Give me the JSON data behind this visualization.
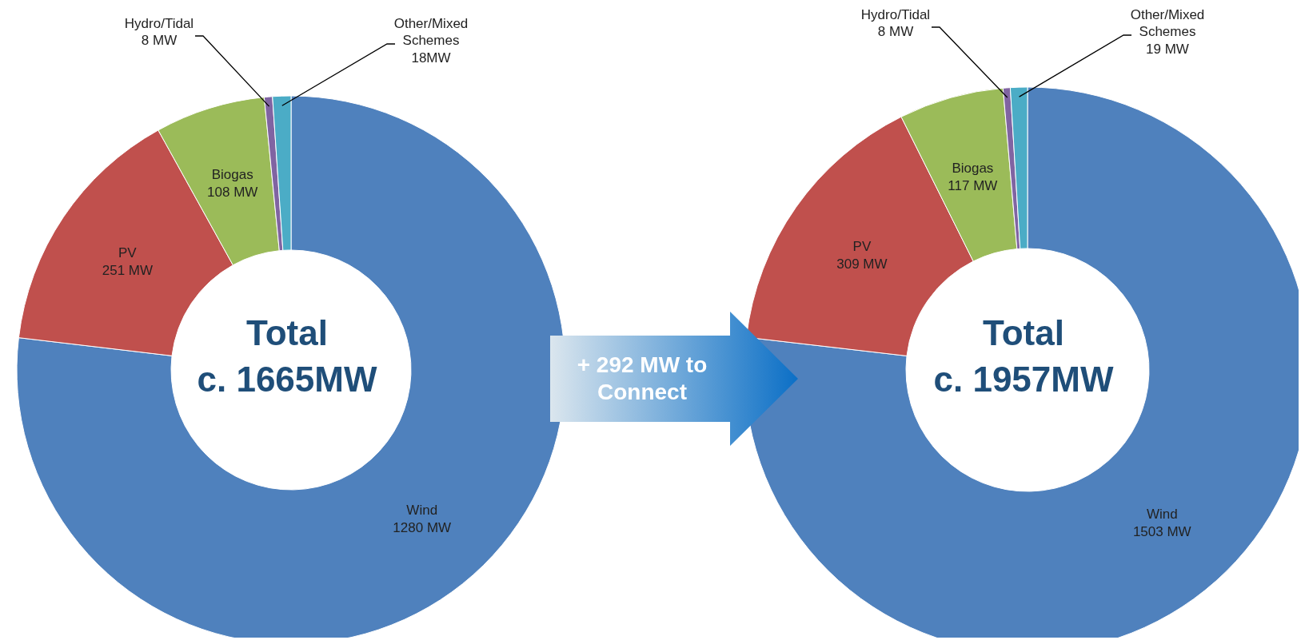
{
  "chart_data": [
    {
      "type": "donut",
      "categories": [
        "Wind",
        "PV",
        "Biogas",
        "Hydro/Tidal",
        "Other/Mixed Schemes"
      ],
      "values": [
        1280,
        251,
        108,
        8,
        18
      ],
      "colors": [
        "#4f81bd",
        "#c0504d",
        "#9bbb59",
        "#8064a2",
        "#4bacc6"
      ],
      "value_labels": [
        "1280 MW",
        "251 MW",
        "108 MW",
        "8 MW",
        "18MW"
      ],
      "annotations": [
        "Total c. 1665MW",
        "+ 292 MW to Connect"
      ]
    },
    {
      "type": "donut",
      "categories": [
        "Wind",
        "PV",
        "Biogas",
        "Hydro/Tidal",
        "Other/Mixed Schemes"
      ],
      "values": [
        1503,
        309,
        117,
        8,
        19
      ],
      "colors": [
        "#4f81bd",
        "#c0504d",
        "#9bbb59",
        "#8064a2",
        "#4bacc6"
      ],
      "value_labels": [
        "1503 MW",
        "309 MW",
        "117 MW",
        "8 MW",
        "19 MW"
      ],
      "annotations": [
        "Total c. 1957MW"
      ]
    }
  ]
}
